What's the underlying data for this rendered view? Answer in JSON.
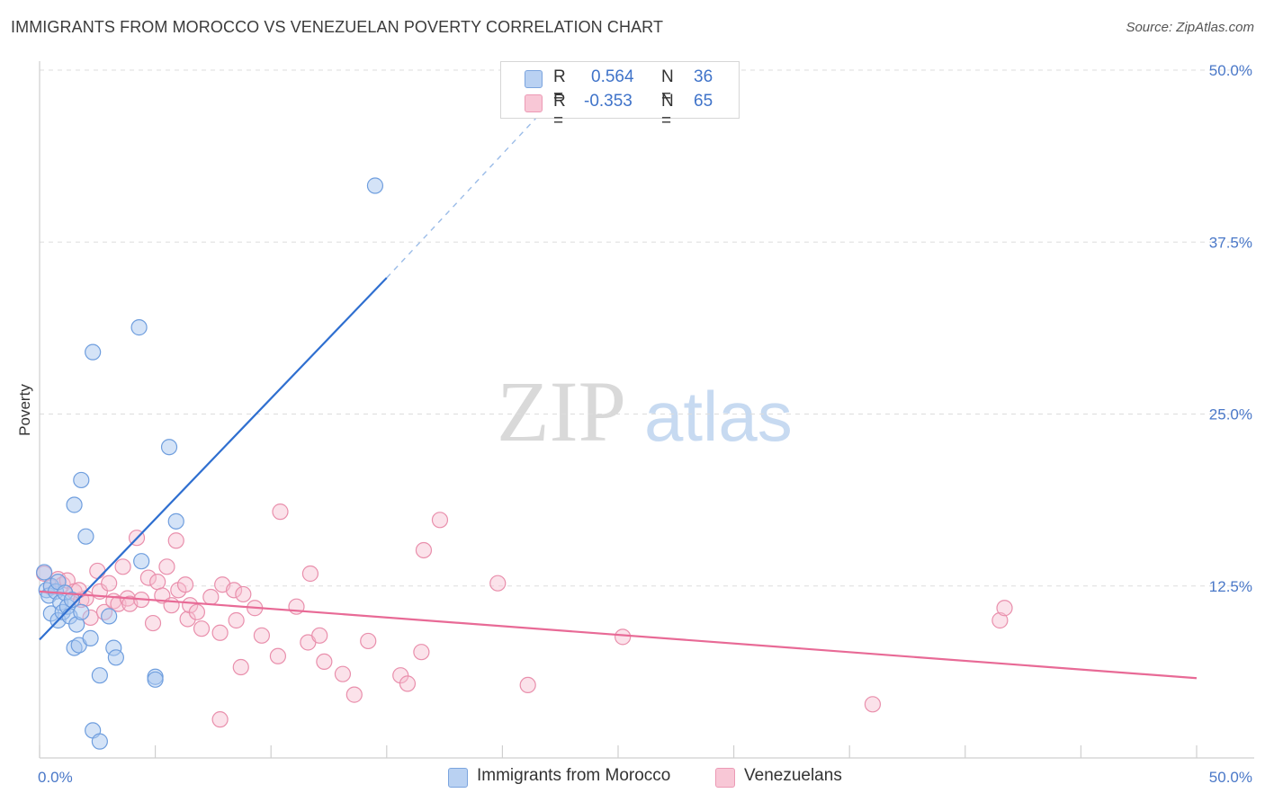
{
  "title": "IMMIGRANTS FROM MOROCCO VS VENEZUELAN POVERTY CORRELATION CHART",
  "source": "Source: ZipAtlas.com",
  "watermark": {
    "zip": "ZIP",
    "atlas": "atlas"
  },
  "legend": {
    "series1": {
      "r_label": "R =",
      "r_value": "0.564",
      "n_label": "N =",
      "n_value": "36"
    },
    "series2": {
      "r_label": "R =",
      "r_value": "-0.353",
      "n_label": "N =",
      "n_value": "65"
    }
  },
  "bottom_legend": {
    "series1": "Immigrants from Morocco",
    "series2": "Venezuelans"
  },
  "colors": {
    "blue_fill": "#aac8f0",
    "blue_stroke": "#6f9ede",
    "blue_line": "#2f6fd0",
    "pink_fill": "#f6bfd0",
    "pink_stroke": "#e98fac",
    "pink_line": "#e86a96",
    "tick_text": "#4a78c8"
  },
  "chart_data": {
    "type": "scatter",
    "title": "IMMIGRANTS FROM MOROCCO VS VENEZUELAN POVERTY CORRELATION CHART",
    "xlabel": "",
    "ylabel": "Poverty",
    "xlim": [
      0,
      50
    ],
    "ylim": [
      0,
      50
    ],
    "x_tick_labels": [
      "0.0%",
      "50.0%"
    ],
    "y_ticks": [
      12.5,
      25.0,
      37.5,
      50.0
    ],
    "y_tick_labels": [
      "12.5%",
      "25.0%",
      "37.5%",
      "50.0%"
    ],
    "series": [
      {
        "name": "Immigrants from Morocco",
        "r": 0.564,
        "n": 36,
        "trend": {
          "x": [
            0,
            15
          ],
          "y": [
            8.6,
            34.9
          ],
          "dashed_to": [
            22,
            47.5
          ]
        },
        "points": [
          [
            0.2,
            13.5
          ],
          [
            0.3,
            12.2
          ],
          [
            0.4,
            11.8
          ],
          [
            0.5,
            12.5
          ],
          [
            0.5,
            10.5
          ],
          [
            0.7,
            12.1
          ],
          [
            0.8,
            10.0
          ],
          [
            0.8,
            12.8
          ],
          [
            0.9,
            11.3
          ],
          [
            1.0,
            10.6
          ],
          [
            1.1,
            12.0
          ],
          [
            1.2,
            11.0
          ],
          [
            1.3,
            10.3
          ],
          [
            1.4,
            11.5
          ],
          [
            1.5,
            8.0
          ],
          [
            1.6,
            9.7
          ],
          [
            1.7,
            8.2
          ],
          [
            1.8,
            10.6
          ],
          [
            2.2,
            8.7
          ],
          [
            2.6,
            6.0
          ],
          [
            3.0,
            10.3
          ],
          [
            3.2,
            8.0
          ],
          [
            3.3,
            7.3
          ],
          [
            4.4,
            14.3
          ],
          [
            1.5,
            18.4
          ],
          [
            1.8,
            20.2
          ],
          [
            2.0,
            16.1
          ],
          [
            2.3,
            29.5
          ],
          [
            4.3,
            31.3
          ],
          [
            5.6,
            22.6
          ],
          [
            5.0,
            5.9
          ],
          [
            5.0,
            5.7
          ],
          [
            5.9,
            17.2
          ],
          [
            14.5,
            41.6
          ],
          [
            2.3,
            2.0
          ],
          [
            2.6,
            1.2
          ]
        ]
      },
      {
        "name": "Venezuelans",
        "r": -0.353,
        "n": 65,
        "trend": {
          "x": [
            0,
            50
          ],
          "y": [
            12.1,
            5.8
          ]
        },
        "points": [
          [
            0.2,
            13.4
          ],
          [
            0.5,
            12.4
          ],
          [
            0.8,
            13.0
          ],
          [
            1.0,
            12.6
          ],
          [
            1.2,
            12.9
          ],
          [
            1.5,
            12.1
          ],
          [
            1.8,
            11.5
          ],
          [
            2.0,
            11.6
          ],
          [
            2.2,
            10.2
          ],
          [
            2.6,
            12.1
          ],
          [
            2.8,
            10.6
          ],
          [
            3.0,
            12.7
          ],
          [
            3.2,
            11.4
          ],
          [
            3.4,
            11.2
          ],
          [
            3.6,
            13.9
          ],
          [
            3.8,
            11.6
          ],
          [
            3.9,
            11.2
          ],
          [
            4.2,
            16.0
          ],
          [
            4.4,
            11.5
          ],
          [
            4.7,
            13.1
          ],
          [
            4.9,
            9.8
          ],
          [
            5.1,
            12.8
          ],
          [
            5.3,
            11.8
          ],
          [
            5.5,
            13.9
          ],
          [
            5.7,
            11.1
          ],
          [
            5.9,
            15.8
          ],
          [
            6.0,
            12.2
          ],
          [
            6.3,
            12.6
          ],
          [
            6.4,
            10.1
          ],
          [
            6.5,
            11.1
          ],
          [
            6.8,
            10.6
          ],
          [
            7.0,
            9.4
          ],
          [
            7.4,
            11.7
          ],
          [
            7.8,
            9.1
          ],
          [
            7.8,
            2.8
          ],
          [
            7.9,
            12.6
          ],
          [
            8.4,
            12.2
          ],
          [
            8.5,
            10.0
          ],
          [
            8.7,
            6.6
          ],
          [
            8.8,
            11.9
          ],
          [
            9.3,
            10.9
          ],
          [
            9.6,
            8.9
          ],
          [
            10.3,
            7.4
          ],
          [
            10.4,
            17.9
          ],
          [
            11.1,
            11.0
          ],
          [
            11.6,
            8.4
          ],
          [
            11.7,
            13.4
          ],
          [
            12.1,
            8.9
          ],
          [
            12.3,
            7.0
          ],
          [
            13.1,
            6.1
          ],
          [
            13.6,
            4.6
          ],
          [
            14.2,
            8.5
          ],
          [
            15.6,
            6.0
          ],
          [
            15.9,
            5.4
          ],
          [
            16.5,
            7.7
          ],
          [
            16.6,
            15.1
          ],
          [
            17.3,
            17.3
          ],
          [
            19.8,
            12.7
          ],
          [
            21.1,
            5.3
          ],
          [
            25.2,
            8.8
          ],
          [
            36.0,
            3.9
          ],
          [
            41.5,
            10.0
          ],
          [
            41.7,
            10.9
          ],
          [
            2.5,
            13.6
          ],
          [
            1.7,
            12.2
          ]
        ]
      }
    ]
  }
}
